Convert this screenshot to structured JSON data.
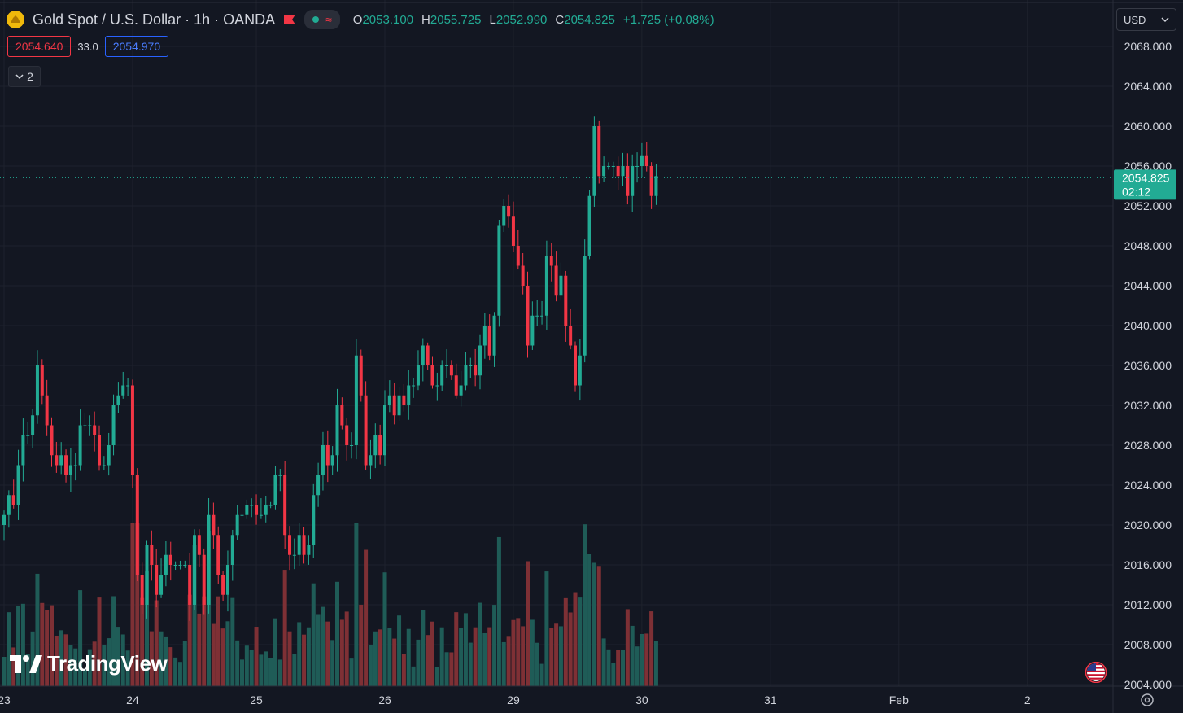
{
  "header": {
    "symbol_title": "Gold Spot / U.S. Dollar · 1h · OANDA",
    "ohlc": [
      {
        "label": "O",
        "value": "2053.100"
      },
      {
        "label": "H",
        "value": "2055.725"
      },
      {
        "label": "L",
        "value": "2052.990"
      },
      {
        "label": "C",
        "value": "2054.825"
      }
    ],
    "change": "+1.725 (+0.08%)"
  },
  "quotes": {
    "bid": "2054.640",
    "spread": "33.0",
    "ask": "2054.970"
  },
  "indicators_toggle": "2",
  "currency": "USD",
  "watermark": "TradingView",
  "price_axis": {
    "ticks": [
      "2068.000",
      "2064.000",
      "2060.000",
      "2056.000",
      "2052.000",
      "2048.000",
      "2044.000",
      "2040.000",
      "2036.000",
      "2032.000",
      "2028.000",
      "2024.000",
      "2020.000",
      "2016.000",
      "2012.000",
      "2008.000",
      "2004.000"
    ],
    "last_price": "2054.825",
    "countdown": "02:12"
  },
  "time_axis": {
    "labels": [
      {
        "text": "23",
        "bar": 0
      },
      {
        "text": "24",
        "bar": 27
      },
      {
        "text": "25",
        "bar": 53
      },
      {
        "text": "26",
        "bar": 80
      },
      {
        "text": "29",
        "bar": 107
      },
      {
        "text": "30",
        "bar": 134
      },
      {
        "text": "31",
        "bar": 161
      },
      {
        "text": "Feb",
        "bar": 188
      },
      {
        "text": "2",
        "bar": 215
      }
    ]
  },
  "colors": {
    "up": "#22ab94",
    "down": "#f23645",
    "up_volume": "#1f5c57",
    "down_volume": "#7e3035",
    "background": "#131722",
    "grid": "#1e222d"
  },
  "chart_data": {
    "type": "candlestick",
    "title": "Gold Spot / U.S. Dollar · 1h · OANDA",
    "ylim": [
      2004,
      2070
    ],
    "close": [
      2021,
      2023,
      2022,
      2026,
      2029,
      2029,
      2031,
      2036,
      2033,
      2030,
      2027,
      2026,
      2027,
      2025,
      2026,
      2026,
      2030,
      2030,
      2030,
      2029,
      2026,
      2026,
      2028,
      2032,
      2033,
      2034,
      2034,
      2025,
      2015,
      2012,
      2018,
      2016,
      2013,
      2015,
      2017,
      2016,
      2016,
      2016,
      2016,
      2012,
      2019,
      2017,
      2012,
      2021,
      2019,
      2015,
      2013,
      2016,
      2019,
      2021,
      2021,
      2022,
      2022,
      2021,
      2021,
      2022,
      2022,
      2025,
      2025,
      2019,
      2017,
      2017,
      2019,
      2017,
      2018,
      2023,
      2025,
      2028,
      2026,
      2027,
      2032,
      2030,
      2028,
      2028,
      2037,
      2033,
      2026,
      2027,
      2029,
      2027,
      2032,
      2033,
      2031,
      2033,
      2032,
      2034,
      2034,
      2036,
      2038,
      2036,
      2034,
      2034,
      2036,
      2036,
      2035,
      2033,
      2034,
      2036,
      2036,
      2035,
      2038,
      2040,
      2037,
      2041,
      2050,
      2052,
      2051,
      2048,
      2046,
      2044,
      2038,
      2041,
      2041,
      2041,
      2047,
      2046,
      2043,
      2045,
      2040,
      2038,
      2034,
      2037,
      2047,
      2053,
      2060,
      2055,
      2056,
      2056,
      2056,
      2055,
      2056,
      2053,
      2056,
      2056,
      2057,
      2056,
      2053,
      2055
    ]
  }
}
